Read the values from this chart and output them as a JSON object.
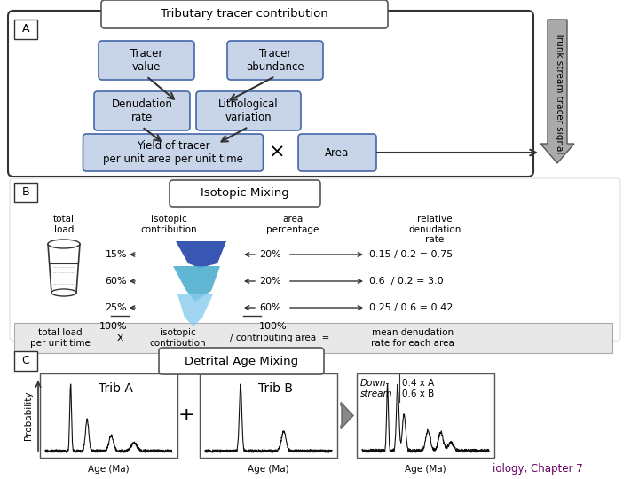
{
  "title": "Tributary tracer contribution",
  "section_A_label": "A",
  "section_B_label": "B",
  "section_C_label": "C",
  "box_A_title": "Tributary tracer contribution",
  "box_B_title": "Isotopic Mixing",
  "box_C_title": "Detrital Age Mixing",
  "tracer_value": "Tracer\nvalue",
  "tracer_abundance": "Tracer\nabundance",
  "denudation_rate": "Denudation\nrate",
  "lithological_variation": "Lithological\nvariation",
  "yield_of_tracer": "Yield of tracer\nper unit area per unit time",
  "area": "Area",
  "trunk_stream": "Trunk stream tracer signal",
  "pct_rows": [
    [
      "15%",
      "20%",
      "0.15 / 0.2 = 0.75"
    ],
    [
      "60%",
      "20%",
      "0.6  / 0.2 = 3.0"
    ],
    [
      "25%",
      "60%",
      "0.25 / 0.6 = 0.42"
    ]
  ],
  "trib_a_label": "Trib A",
  "trib_b_label": "Trib B",
  "downstream_label": "Down-\nstream",
  "downstream_fractions": "0.4 x A\n0.6 x B",
  "prob_label": "Probability",
  "age_label": "Age (Ma)",
  "citation": "iology, Chapter 7",
  "bg_color": "#ffffff",
  "box_fill": "#c8d4e8",
  "box_outline": "#4466aa",
  "arrow_color": "#333333",
  "trunk_arrow_color": "#888888",
  "blue_dark": "#2244aa",
  "blue_light": "#88ccee",
  "blue_mid": "#44aacc"
}
